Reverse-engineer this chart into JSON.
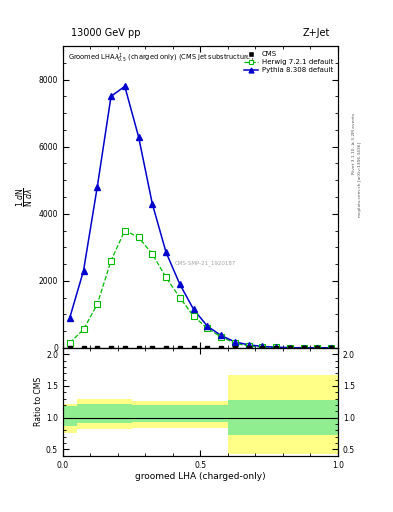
{
  "title_top": "13000 GeV pp",
  "title_right": "Z+Jet",
  "xlabel": "groomed LHA (charged-only)",
  "ylabel_ratio": "Ratio to CMS",
  "watermark": "mcplots.cern.ch [arXiv:1306.3436]",
  "rivet_version": "Rivet 3.1.10, ≥ 3.2M events",
  "cms_id": "CMS-SMP-21_1920187",
  "x_edges": [
    0.0,
    0.05,
    0.1,
    0.15,
    0.2,
    0.25,
    0.3,
    0.35,
    0.4,
    0.45,
    0.5,
    0.55,
    0.6,
    0.65,
    0.7,
    0.75,
    0.8,
    0.85,
    0.9,
    0.95,
    1.0
  ],
  "herwig_y": [
    150,
    550,
    1300,
    2600,
    3500,
    3300,
    2800,
    2100,
    1500,
    950,
    580,
    330,
    140,
    55,
    25,
    15,
    8,
    4,
    2,
    1
  ],
  "pythia_y": [
    900,
    2300,
    4800,
    7500,
    7800,
    6300,
    4300,
    2850,
    1900,
    1150,
    650,
    370,
    180,
    90,
    45,
    18,
    8,
    4,
    2,
    1
  ],
  "ratio_x_edges": [
    0.0,
    0.05,
    0.1,
    0.15,
    0.2,
    0.25,
    0.3,
    0.35,
    0.4,
    0.45,
    0.5,
    0.55,
    0.6,
    0.65,
    0.7,
    0.75,
    0.8,
    0.85,
    0.9,
    0.95,
    1.0
  ],
  "green_band_lo": [
    0.87,
    0.92,
    0.92,
    0.92,
    0.92,
    0.93,
    0.93,
    0.93,
    0.93,
    0.93,
    0.93,
    0.93,
    0.72,
    0.72,
    0.72,
    0.72,
    0.72,
    0.72,
    0.72,
    0.72
  ],
  "green_band_hi": [
    1.18,
    1.22,
    1.22,
    1.22,
    1.22,
    1.2,
    1.2,
    1.2,
    1.2,
    1.2,
    1.2,
    1.2,
    1.28,
    1.28,
    1.28,
    1.28,
    1.28,
    1.28,
    1.28,
    1.28
  ],
  "yellow_band_lo": [
    0.76,
    0.82,
    0.82,
    0.82,
    0.82,
    0.83,
    0.83,
    0.83,
    0.83,
    0.83,
    0.83,
    0.83,
    0.43,
    0.43,
    0.43,
    0.43,
    0.43,
    0.43,
    0.43,
    0.43
  ],
  "yellow_band_hi": [
    1.22,
    1.3,
    1.3,
    1.3,
    1.3,
    1.27,
    1.27,
    1.27,
    1.27,
    1.27,
    1.27,
    1.27,
    1.68,
    1.68,
    1.68,
    1.68,
    1.68,
    1.68,
    1.68,
    1.68
  ],
  "herwig_color": "#00bb00",
  "pythia_color": "#0000cc",
  "cms_color": "#000000",
  "green_band_color": "#90ee90",
  "yellow_band_color": "#ffff88",
  "ylim_main": [
    0,
    9000
  ],
  "ylim_ratio": [
    0.4,
    2.1
  ],
  "xlim": [
    0.0,
    1.0
  ],
  "yticks_main": [
    0,
    2000,
    4000,
    6000,
    8000
  ],
  "ytick_labels_main": [
    "0",
    "2000",
    "4000",
    "6000",
    "8000"
  ],
  "yticks_ratio": [
    0.5,
    1.0,
    1.5,
    2.0
  ],
  "xticks": [
    0.0,
    0.5,
    1.0
  ]
}
